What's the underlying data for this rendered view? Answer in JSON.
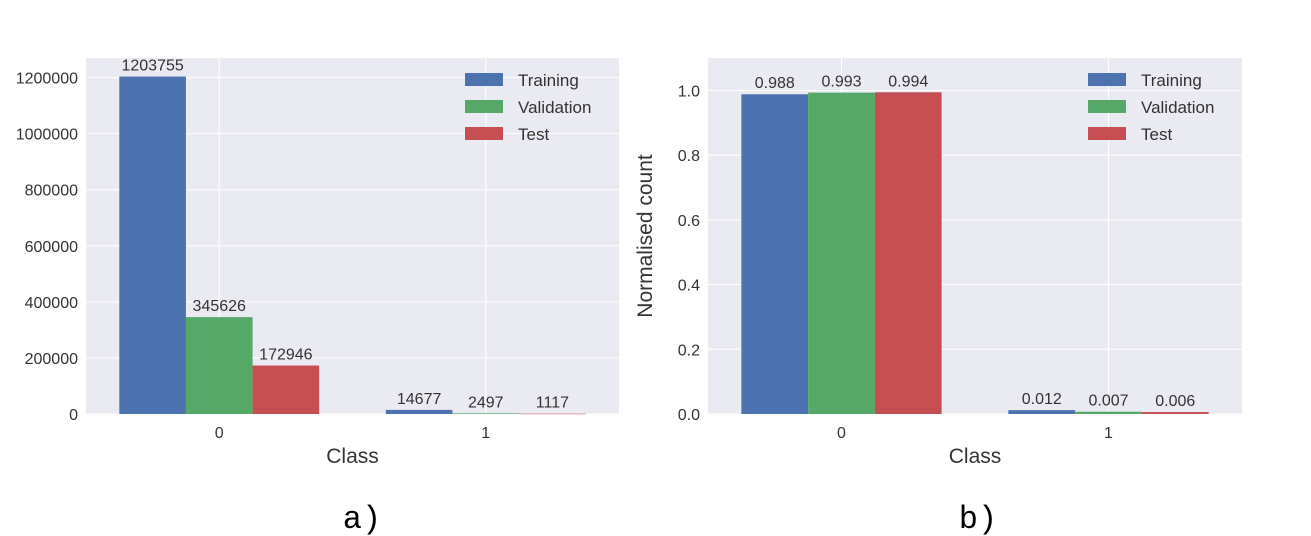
{
  "colors": {
    "plot_bg": "#EAEAF2",
    "grid": "#FFFFFF",
    "series": [
      "#4C72B0",
      "#55A868",
      "#C44E52"
    ]
  },
  "chart_data": [
    {
      "type": "bar",
      "panel_label": "a)",
      "categories": [
        "0",
        "1"
      ],
      "xlabel": "Class",
      "ylabel": "",
      "ylim": [
        0,
        1270000
      ],
      "yticks": [
        0,
        200000,
        400000,
        600000,
        800000,
        1000000,
        1200000
      ],
      "ytick_labels": [
        "0",
        "200000",
        "400000",
        "600000",
        "800000",
        "1000000",
        "1200000"
      ],
      "grid": true,
      "legend_position": "top-right",
      "series": [
        {
          "name": "Training",
          "values": [
            1203755,
            14677
          ],
          "labels": [
            "1203755",
            "14677"
          ]
        },
        {
          "name": "Validation",
          "values": [
            345626,
            2497
          ],
          "labels": [
            "345626",
            "2497"
          ]
        },
        {
          "name": "Test",
          "values": [
            172946,
            1117
          ],
          "labels": [
            "172946",
            "1117"
          ]
        }
      ]
    },
    {
      "type": "bar",
      "panel_label": "b)",
      "categories": [
        "0",
        "1"
      ],
      "xlabel": "Class",
      "ylabel": "Normalised count",
      "ylim": [
        0,
        1.1
      ],
      "yticks": [
        0,
        0.2,
        0.4,
        0.6,
        0.8,
        1.0
      ],
      "ytick_labels": [
        "0.0",
        "0.2",
        "0.4",
        "0.6",
        "0.8",
        "1.0"
      ],
      "grid": true,
      "legend_position": "top-right",
      "series": [
        {
          "name": "Training",
          "values": [
            0.988,
            0.012
          ],
          "labels": [
            "0.988",
            "0.012"
          ]
        },
        {
          "name": "Validation",
          "values": [
            0.993,
            0.007
          ],
          "labels": [
            "0.993",
            "0.007"
          ]
        },
        {
          "name": "Test",
          "values": [
            0.994,
            0.006
          ],
          "labels": [
            "0.994",
            "0.006"
          ]
        }
      ]
    }
  ]
}
